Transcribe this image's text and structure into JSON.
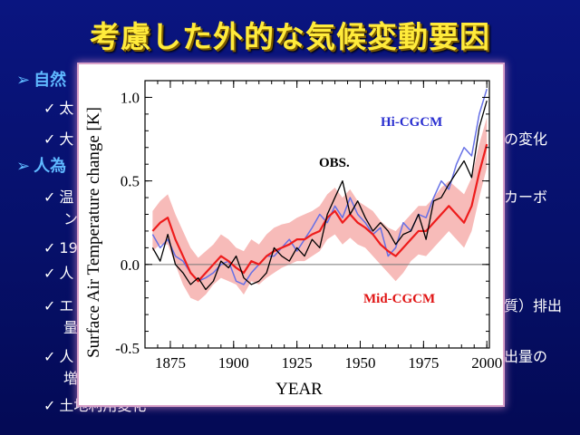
{
  "title": "考慮した外的な気候変動要因",
  "bullets": [
    {
      "level": 1,
      "marker": "➢",
      "text": "自然"
    },
    {
      "level": 2,
      "marker": "✓",
      "text": "太"
    },
    {
      "level": 2,
      "marker": "✓",
      "text": "大"
    },
    {
      "level": 1,
      "marker": "➢",
      "text": "人為"
    },
    {
      "level": 2,
      "marker": "✓",
      "text": "温"
    },
    {
      "level": 2,
      "marker": "",
      "text": "ン"
    },
    {
      "level": 2,
      "marker": "✓",
      "text": "19"
    },
    {
      "level": 2,
      "marker": "✓",
      "text": "人"
    },
    {
      "level": 2,
      "marker": "✓",
      "text": "エ"
    },
    {
      "level": 2,
      "marker": "",
      "text": "量"
    },
    {
      "level": 2,
      "marker": "✓",
      "text": "人"
    },
    {
      "level": 2,
      "marker": "",
      "text": "増"
    },
    {
      "level": 2,
      "marker": "✓",
      "text": "土地利用変化"
    }
  ],
  "right_fragments": [
    "の変化",
    "カーボ",
    "質）排出",
    "出量の"
  ],
  "chart_data": {
    "type": "line",
    "ylabel": "Surface Air Temperature change [K]",
    "xlabel": "YEAR",
    "xlim": [
      1865,
      2001
    ],
    "ylim": [
      -0.5,
      1.1
    ],
    "xticks": [
      1875,
      1900,
      1925,
      1950,
      1975,
      2000
    ],
    "yticks": [
      -0.5,
      0.0,
      0.5,
      1.0
    ],
    "ytick_labels": [
      "-0.5",
      "0.0",
      "0.5",
      "1.0"
    ],
    "zero_line": true,
    "annotations": [
      {
        "text": "Hi-CGCM",
        "color": "#2a2fd0"
      },
      {
        "text": "OBS.",
        "color": "#000000"
      },
      {
        "text": "Mid-CGCM",
        "color": "#e01414"
      }
    ],
    "series": [
      {
        "name": "OBS.",
        "color": "#000000",
        "x": [
          1868,
          1871,
          1874,
          1877,
          1880,
          1883,
          1886,
          1889,
          1892,
          1895,
          1898,
          1901,
          1904,
          1907,
          1910,
          1913,
          1916,
          1919,
          1922,
          1925,
          1928,
          1931,
          1934,
          1937,
          1940,
          1943,
          1946,
          1949,
          1952,
          1955,
          1958,
          1961,
          1964,
          1967,
          1970,
          1973,
          1976,
          1979,
          1982,
          1985,
          1988,
          1991,
          1994,
          1997,
          2000
        ],
        "values": [
          0.1,
          0.02,
          0.18,
          0.0,
          -0.05,
          -0.12,
          -0.08,
          -0.15,
          -0.1,
          0.02,
          -0.02,
          0.05,
          -0.08,
          -0.12,
          -0.1,
          -0.05,
          0.1,
          0.05,
          0.02,
          0.1,
          0.05,
          0.15,
          0.1,
          0.3,
          0.4,
          0.5,
          0.3,
          0.38,
          0.28,
          0.2,
          0.25,
          0.2,
          0.12,
          0.18,
          0.2,
          0.3,
          0.15,
          0.38,
          0.4,
          0.48,
          0.55,
          0.62,
          0.52,
          0.82,
          0.98
        ]
      },
      {
        "name": "Hi-CGCM",
        "color": "#6670e6",
        "x": [
          1868,
          1871,
          1874,
          1877,
          1880,
          1883,
          1886,
          1889,
          1892,
          1895,
          1898,
          1901,
          1904,
          1907,
          1910,
          1913,
          1916,
          1919,
          1922,
          1925,
          1928,
          1931,
          1934,
          1937,
          1940,
          1943,
          1946,
          1949,
          1952,
          1955,
          1958,
          1961,
          1964,
          1967,
          1970,
          1973,
          1976,
          1979,
          1982,
          1985,
          1988,
          1991,
          1994,
          1997,
          2000
        ],
        "values": [
          0.18,
          0.1,
          0.15,
          0.05,
          0.02,
          -0.05,
          -0.1,
          -0.08,
          -0.05,
          0.0,
          0.02,
          -0.1,
          -0.12,
          -0.05,
          0.0,
          0.05,
          0.05,
          0.1,
          0.15,
          0.08,
          0.15,
          0.22,
          0.3,
          0.25,
          0.35,
          0.28,
          0.4,
          0.3,
          0.25,
          0.18,
          0.22,
          0.05,
          0.1,
          0.25,
          0.2,
          0.3,
          0.28,
          0.4,
          0.5,
          0.45,
          0.6,
          0.7,
          0.65,
          0.9,
          1.05
        ]
      },
      {
        "name": "Mid-CGCM",
        "color": "#ee1c1c",
        "x": [
          1868,
          1871,
          1874,
          1877,
          1880,
          1883,
          1886,
          1889,
          1892,
          1895,
          1898,
          1901,
          1904,
          1907,
          1910,
          1913,
          1916,
          1919,
          1922,
          1925,
          1928,
          1931,
          1934,
          1937,
          1940,
          1943,
          1946,
          1949,
          1952,
          1955,
          1958,
          1961,
          1964,
          1967,
          1970,
          1973,
          1976,
          1979,
          1982,
          1985,
          1988,
          1991,
          1994,
          1997,
          2000
        ],
        "values": [
          0.2,
          0.25,
          0.28,
          0.15,
          0.05,
          -0.05,
          -0.1,
          -0.05,
          0.0,
          0.05,
          0.02,
          -0.02,
          -0.05,
          0.02,
          0.0,
          0.05,
          0.08,
          0.1,
          0.12,
          0.15,
          0.15,
          0.18,
          0.2,
          0.28,
          0.32,
          0.25,
          0.3,
          0.25,
          0.22,
          0.18,
          0.12,
          0.08,
          0.05,
          0.1,
          0.15,
          0.2,
          0.2,
          0.25,
          0.3,
          0.35,
          0.3,
          0.25,
          0.35,
          0.55,
          0.72
        ]
      }
    ],
    "band": {
      "name": "Mid-CGCM spread",
      "color": "#f5aaa8",
      "x": [
        1868,
        1871,
        1874,
        1877,
        1880,
        1883,
        1886,
        1889,
        1892,
        1895,
        1898,
        1901,
        1904,
        1907,
        1910,
        1913,
        1916,
        1919,
        1922,
        1925,
        1928,
        1931,
        1934,
        1937,
        1940,
        1943,
        1946,
        1949,
        1952,
        1955,
        1958,
        1961,
        1964,
        1967,
        1970,
        1973,
        1976,
        1979,
        1982,
        1985,
        1988,
        1991,
        1994,
        1997,
        2000
      ],
      "low": [
        0.08,
        0.12,
        0.12,
        0.0,
        -0.12,
        -0.2,
        -0.22,
        -0.18,
        -0.12,
        -0.08,
        -0.1,
        -0.12,
        -0.18,
        -0.1,
        -0.12,
        -0.08,
        -0.05,
        -0.02,
        0.0,
        0.02,
        0.02,
        0.05,
        0.08,
        0.15,
        0.18,
        0.12,
        0.16,
        0.12,
        0.1,
        0.05,
        0.0,
        -0.05,
        -0.1,
        -0.05,
        0.02,
        0.06,
        0.05,
        0.1,
        0.15,
        0.2,
        0.15,
        0.1,
        0.2,
        0.4,
        0.58
      ],
      "high": [
        0.32,
        0.38,
        0.42,
        0.3,
        0.2,
        0.1,
        0.04,
        0.08,
        0.12,
        0.18,
        0.15,
        0.1,
        0.08,
        0.15,
        0.12,
        0.18,
        0.22,
        0.24,
        0.25,
        0.28,
        0.3,
        0.32,
        0.35,
        0.42,
        0.46,
        0.4,
        0.45,
        0.38,
        0.35,
        0.32,
        0.26,
        0.22,
        0.2,
        0.25,
        0.3,
        0.35,
        0.35,
        0.4,
        0.46,
        0.5,
        0.46,
        0.42,
        0.52,
        0.72,
        0.88
      ]
    }
  }
}
